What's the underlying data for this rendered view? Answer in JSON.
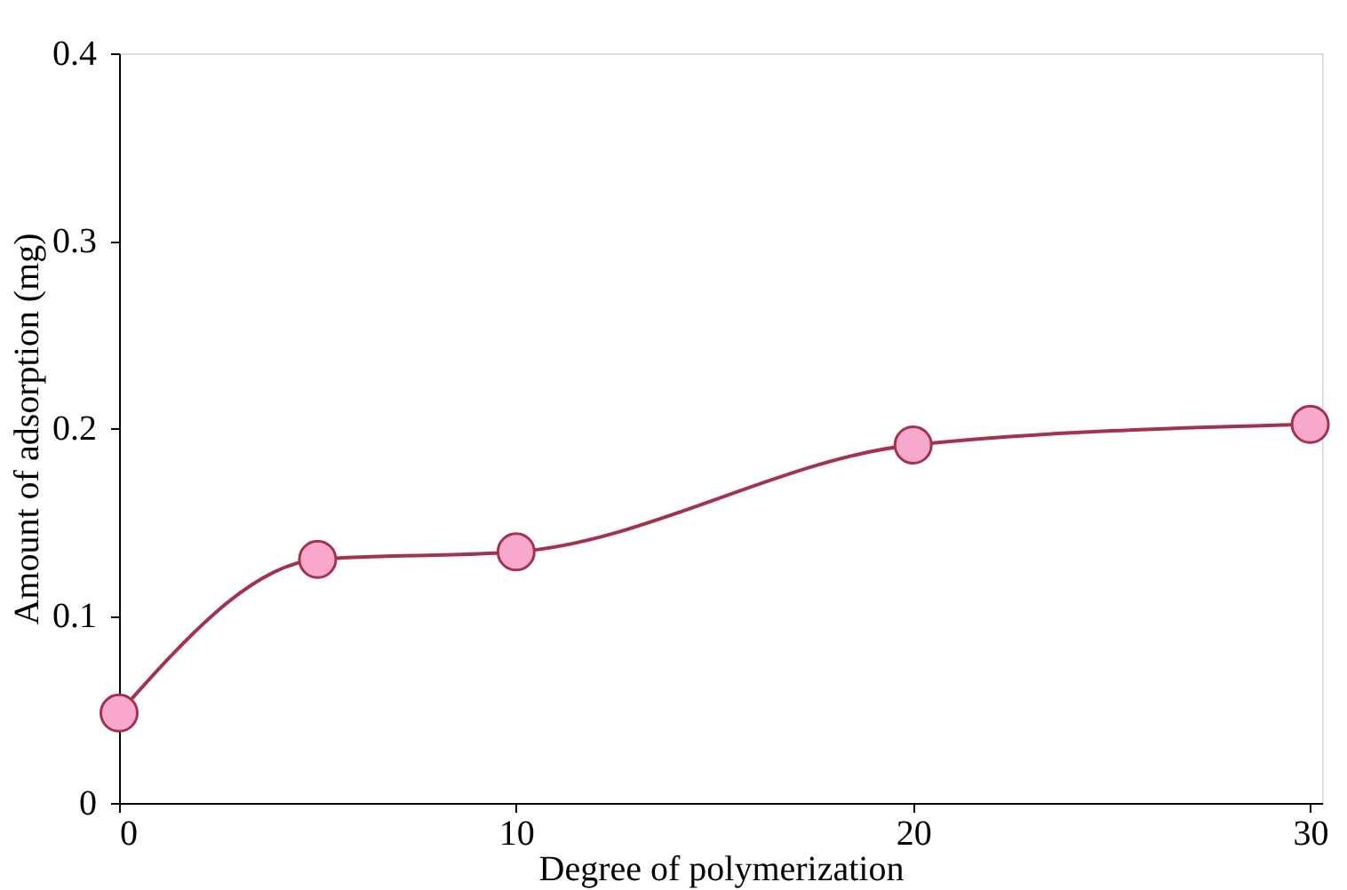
{
  "chart_data": {
    "type": "line",
    "xlabel": "Degree of polymerization",
    "ylabel": "Amount of adsorption (mg)",
    "x": [
      0,
      5,
      10,
      20,
      30
    ],
    "series": [
      {
        "color": "#a3324f",
        "values": [
          0.048,
          0.13,
          0.134,
          0.191,
          0.202
        ]
      }
    ],
    "xlim": [
      0,
      30.3
    ],
    "xticks": [
      0,
      10,
      20,
      30
    ],
    "ylim": [
      0,
      0.4
    ],
    "yticks": [
      0,
      0.1,
      0.2,
      0.3,
      0.4
    ],
    "grid": false,
    "marker": "circle",
    "line_style": "solid"
  }
}
